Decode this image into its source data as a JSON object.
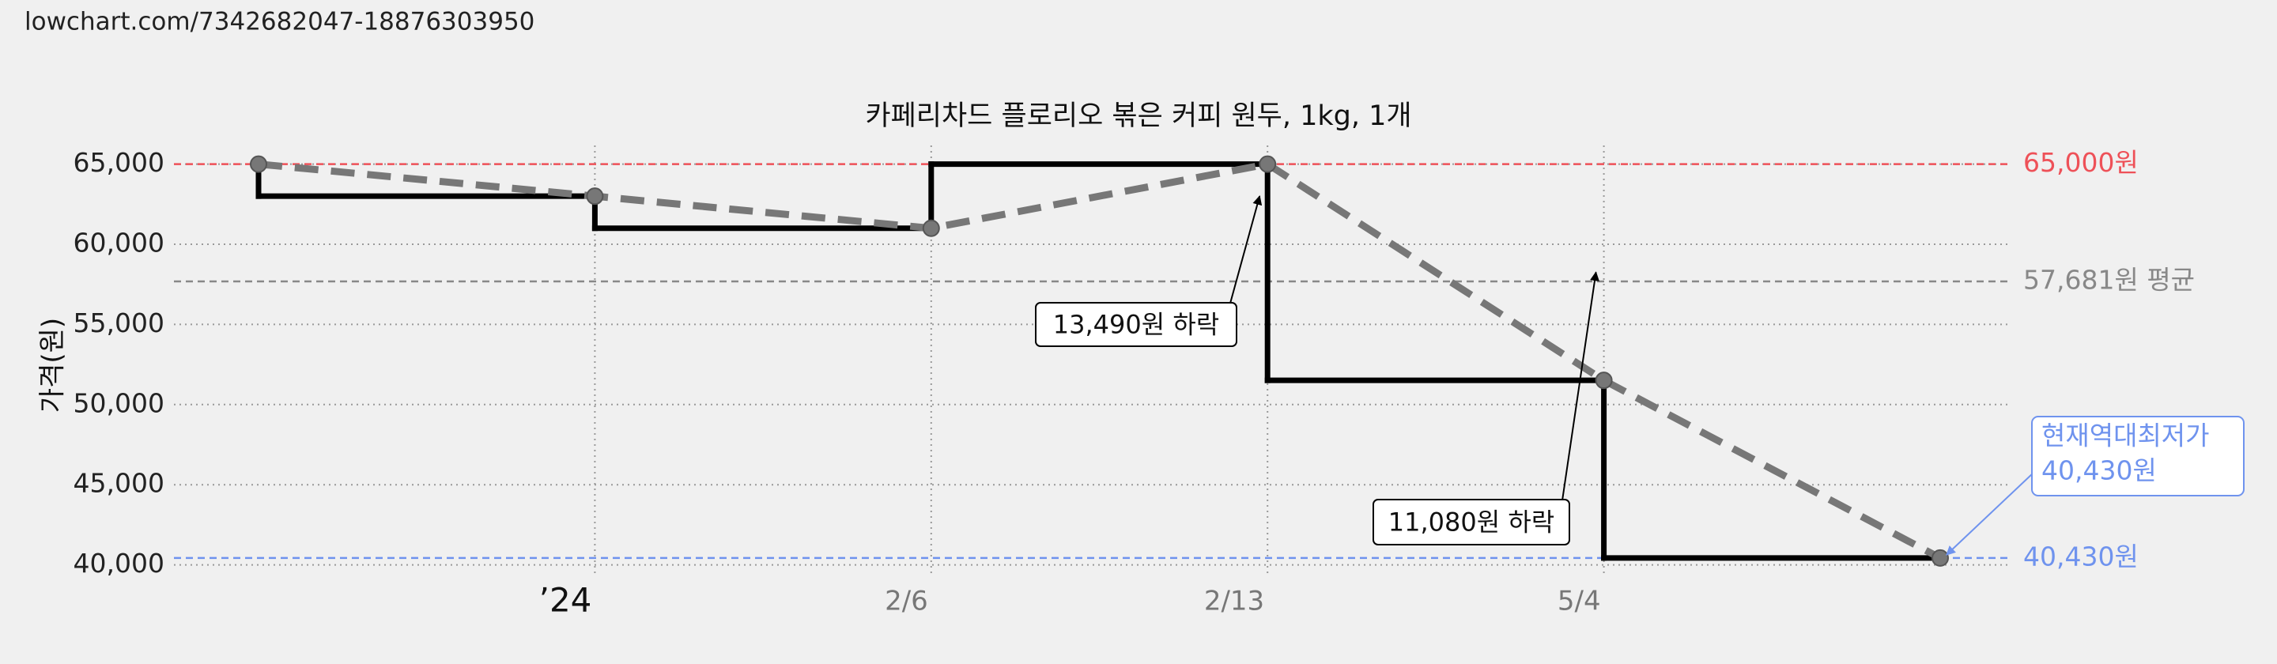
{
  "url": "lowchart.com/7342682047-18876303950",
  "chart_data": {
    "type": "line",
    "step": true,
    "title": "카페리차드 플로리오 볶은 커피 원두, 1kg, 1개",
    "y_label": "가격(원)",
    "categories": [
      null,
      "’24",
      "2/6",
      "2/13",
      "5/4",
      null
    ],
    "values": [
      65000,
      63000,
      61000,
      65000,
      51510,
      40430
    ],
    "color": "#000000",
    "trend_color": "#777777",
    "ylim": [
      40000,
      65000
    ],
    "yticks": [
      {
        "value": 40000,
        "label": "40,000"
      },
      {
        "value": 45000,
        "label": "45,000"
      },
      {
        "value": 50000,
        "label": "50,000"
      },
      {
        "value": 55000,
        "label": "55,000"
      },
      {
        "value": 60000,
        "label": "60,000"
      },
      {
        "value": 65000,
        "label": "65,000"
      }
    ],
    "grid": true,
    "reference_lines": [
      {
        "value": 65000,
        "label": "65,000원",
        "color": "#ee5158"
      },
      {
        "value": 57681,
        "label": "57,681원 평균",
        "color": "#888888"
      },
      {
        "value": 40430,
        "label": "40,430원",
        "color": "#6f93ee"
      }
    ],
    "annotations": [
      {
        "text": "13,490원 하락",
        "at": 3
      },
      {
        "text": "11,080원 하락",
        "at": 4
      }
    ],
    "lowest_callout": [
      "현재역대최저가",
      "40,430원"
    ]
  }
}
